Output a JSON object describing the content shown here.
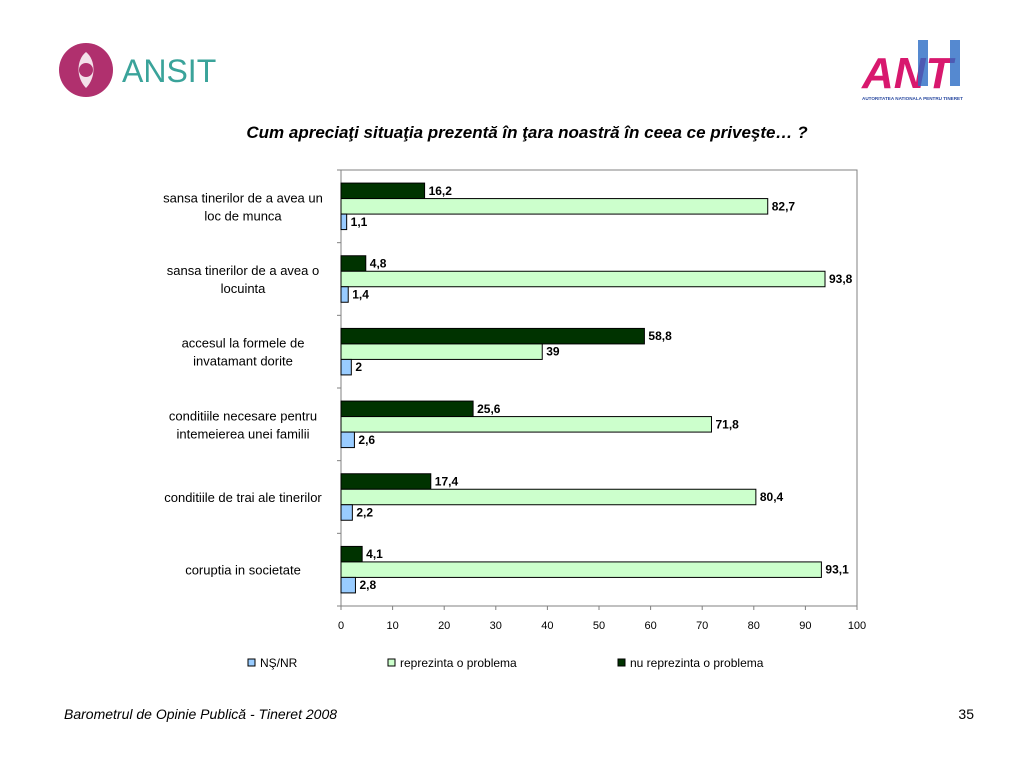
{
  "logos": {
    "left_text": "ANSIT",
    "right_text": "ANT",
    "right_subtitle": "AUTORITATEA NATIONALA PENTRU TINERET"
  },
  "page": {
    "title": "Cum apreciaţi situaţia prezentă în ţara noastră în ceea ce priveşte… ?",
    "footer": "Barometrul de Opinie Publică - Tineret 2008",
    "page_number": "35"
  },
  "chart_data": {
    "type": "bar",
    "orientation": "horizontal",
    "categories": [
      [
        "sansa tinerilor de a avea un",
        "loc de munca"
      ],
      [
        "sansa tinerilor de a avea o",
        "locuinta"
      ],
      [
        "accesul la formele de",
        "invatamant dorite"
      ],
      [
        "conditiile necesare pentru",
        "intemeierea unei familii"
      ],
      [
        "conditiile de trai ale tinerilor"
      ],
      [
        "coruptia in societate"
      ]
    ],
    "series": [
      {
        "name": "nu reprezinta o problema",
        "color": "#003300",
        "values": [
          16.2,
          4.8,
          58.8,
          25.6,
          17.4,
          4.1
        ],
        "labels": [
          "16,2",
          "4,8",
          "58,8",
          "25,6",
          "17,4",
          "4,1"
        ]
      },
      {
        "name": "reprezinta o problema",
        "color": "#CCFFCC",
        "values": [
          82.7,
          93.8,
          39,
          71.8,
          80.4,
          93.1
        ],
        "labels": [
          "82,7",
          "93,8",
          "39",
          "71,8",
          "80,4",
          "93,1"
        ]
      },
      {
        "name": "NŞ/NR",
        "color": "#99CCFF",
        "values": [
          1.1,
          1.4,
          2,
          2.6,
          2.2,
          2.8
        ],
        "labels": [
          "1,1",
          "1,4",
          "2",
          "2,6",
          "2,2",
          "2,8"
        ]
      }
    ],
    "legend_order": [
      "NŞ/NR",
      "reprezinta o problema",
      "nu reprezinta o problema"
    ],
    "xlim": [
      0,
      100
    ],
    "xticks": [
      "0",
      "10",
      "20",
      "30",
      "40",
      "50",
      "60",
      "70",
      "80",
      "90",
      "100"
    ],
    "grid": false,
    "legend_position": "bottom"
  }
}
